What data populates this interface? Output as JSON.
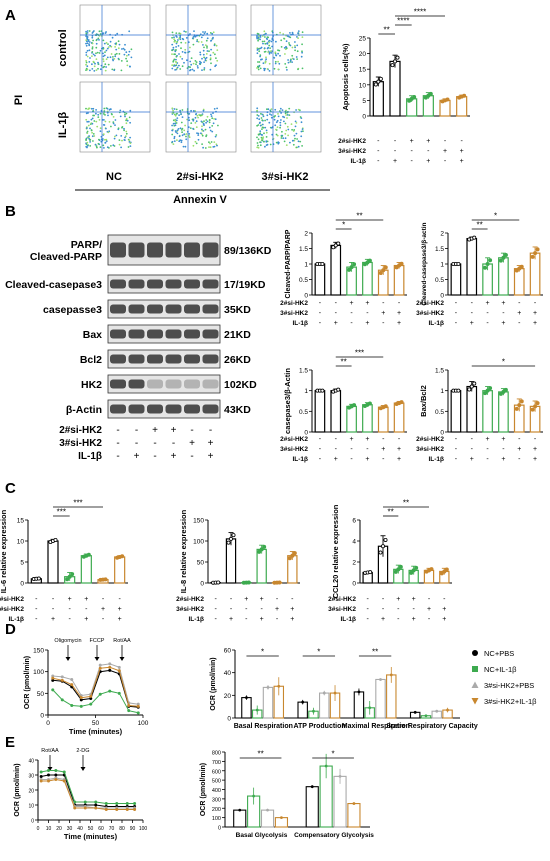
{
  "panels": {
    "a": "A",
    "b": "B",
    "c": "C",
    "d": "D",
    "e": "E"
  },
  "flow": {
    "y_axis_label": "PI",
    "x_axis_label": "Annexin V",
    "row_labels": [
      "control",
      "IL-1β"
    ],
    "col_labels": [
      "NC",
      "2#si-HK2",
      "3#si-HK2"
    ]
  },
  "conditions": {
    "row_labels": [
      "2#si-HK2",
      "3#si-HK2",
      "IL-1β"
    ],
    "signs_6": [
      [
        "-",
        "-",
        "+",
        "+",
        "-",
        "-"
      ],
      [
        "-",
        "-",
        "-",
        "-",
        "+",
        "+"
      ],
      [
        "-",
        "+",
        "-",
        "+",
        "-",
        "+"
      ]
    ]
  },
  "blot": {
    "bands": [
      {
        "label": "PARP/\nCleaved-PARP",
        "size": "89/136KD"
      },
      {
        "label": "Cleaved-casepase3",
        "size": "17/19KD"
      },
      {
        "label": "casepasse3",
        "size": "35KD"
      },
      {
        "label": "Bax",
        "size": "21KD"
      },
      {
        "label": "Bcl2",
        "size": "26KD"
      },
      {
        "label": "HK2",
        "size": "102KD"
      },
      {
        "label": "β-Actin",
        "size": "43KD"
      }
    ]
  },
  "colors": {
    "black": "#000000",
    "green": "#3daa4f",
    "gray": "#aaaaaa",
    "orange": "#c8872e"
  },
  "chart_data": [
    {
      "id": "apoptosis",
      "type": "bar",
      "ylabel": "Apoptosis cells(%)",
      "ylim": [
        0,
        25
      ],
      "yticks": [
        0,
        5,
        10,
        15,
        20,
        25
      ],
      "values": [
        11,
        17.5,
        5.5,
        6.5,
        5,
        6.2
      ],
      "errors": [
        1.5,
        2,
        1,
        1,
        0.5,
        0.5
      ],
      "sig": [
        {
          "from": 0,
          "to": 1,
          "label": "**"
        },
        {
          "from": 1,
          "to": 2,
          "label": "****"
        },
        {
          "from": 1,
          "to": 4,
          "label": "****"
        }
      ]
    },
    {
      "id": "cleaved_parp",
      "type": "bar",
      "ylabel": "Cleaved-PARP/PARP",
      "ylim": [
        0,
        2
      ],
      "yticks": [
        0,
        0.5,
        1.0,
        1.5,
        2.0
      ],
      "values": [
        1,
        1.6,
        0.9,
        1.05,
        0.8,
        0.95
      ],
      "errors": [
        0,
        0.1,
        0.15,
        0.1,
        0.15,
        0.1
      ],
      "sig": [
        {
          "from": 1,
          "to": 2,
          "label": "*"
        },
        {
          "from": 1,
          "to": 4,
          "label": "**"
        }
      ]
    },
    {
      "id": "cleaved_casp3",
      "type": "bar",
      "ylabel": "Cleaved-casepase3/β-actin",
      "ylim": [
        0,
        2
      ],
      "yticks": [
        0,
        0.5,
        1.0,
        1.5,
        2.0
      ],
      "values": [
        1,
        1.82,
        1.0,
        1.2,
        0.85,
        1.35
      ],
      "errors": [
        0,
        0.05,
        0.2,
        0.15,
        0.1,
        0.2
      ],
      "sig": [
        {
          "from": 1,
          "to": 2,
          "label": "**"
        },
        {
          "from": 1,
          "to": 4,
          "label": "*"
        }
      ]
    },
    {
      "id": "casp3",
      "type": "bar",
      "ylabel": "casepase3/β-Actin",
      "ylim": [
        0,
        1.5
      ],
      "yticks": [
        0,
        0.5,
        1.0,
        1.5
      ],
      "values": [
        1,
        1.0,
        0.62,
        0.66,
        0.6,
        0.7
      ],
      "errors": [
        0,
        0.04,
        0.05,
        0.05,
        0.04,
        0.04
      ],
      "sig": [
        {
          "from": 1,
          "to": 2,
          "label": "**"
        },
        {
          "from": 1,
          "to": 4,
          "label": "***"
        }
      ]
    },
    {
      "id": "bax_bcl2",
      "type": "bar",
      "ylabel": "Bax/Bcl2",
      "ylim": [
        0,
        1.5
      ],
      "yticks": [
        0,
        0.5,
        1.0,
        1.5
      ],
      "values": [
        1,
        1.1,
        1.0,
        0.97,
        0.65,
        0.62
      ],
      "errors": [
        0,
        0.12,
        0.1,
        0.08,
        0.15,
        0.13
      ],
      "sig": [
        {
          "from": 1,
          "to": 5,
          "label": "*"
        }
      ]
    },
    {
      "id": "il6",
      "type": "bar",
      "ylabel": "IL-6 relative expression",
      "ylim": [
        0,
        15
      ],
      "yticks": [
        0,
        5,
        10,
        15
      ],
      "values": [
        1,
        10,
        1.5,
        6.5,
        0.8,
        6.2
      ],
      "errors": [
        0.1,
        0.4,
        1,
        0.4,
        0.1,
        0.3
      ],
      "sig": [
        {
          "from": 1,
          "to": 2,
          "label": "***"
        },
        {
          "from": 1,
          "to": 4,
          "label": "***"
        }
      ]
    },
    {
      "id": "il8",
      "type": "bar",
      "ylabel": "IL-8 relative expression",
      "ylim": [
        0,
        150
      ],
      "yticks": [
        0,
        50,
        100,
        150
      ],
      "values": [
        1,
        105,
        1,
        80,
        1,
        65
      ],
      "errors": [
        0.5,
        15,
        0.5,
        10,
        0.5,
        10
      ],
      "sig": []
    },
    {
      "id": "ccl20",
      "type": "bar",
      "ylabel": "CCL20 relative expression",
      "ylim": [
        0,
        6
      ],
      "yticks": [
        0,
        2,
        4,
        6
      ],
      "values": [
        1,
        3.5,
        1.3,
        1.2,
        1.2,
        1.1
      ],
      "errors": [
        0.05,
        1,
        0.4,
        0.4,
        0.2,
        0.3
      ],
      "sig": [
        {
          "from": 1,
          "to": 2,
          "label": "**"
        },
        {
          "from": 1,
          "to": 4,
          "label": "**"
        }
      ]
    },
    {
      "id": "ocr_time",
      "type": "line",
      "ylabel": "OCR (pmol/min)",
      "xlabel": "Time (minutes)",
      "xlim": [
        0,
        100
      ],
      "ylim": [
        0,
        150
      ],
      "xticks": [
        0,
        50,
        100
      ],
      "yticks": [
        0,
        50,
        100,
        150
      ],
      "annotations": [
        "Oligomycin",
        "FCCP",
        "Rot/AA"
      ],
      "x": [
        5,
        15,
        25,
        35,
        45,
        55,
        65,
        75,
        85,
        95
      ],
      "series": [
        {
          "name": "NC+PBS",
          "color": "black",
          "values": [
            80,
            78,
            65,
            35,
            38,
            100,
            103,
            95,
            20,
            18
          ]
        },
        {
          "name": "NC+IL-1β",
          "color": "green",
          "values": [
            58,
            35,
            22,
            20,
            25,
            48,
            55,
            50,
            10,
            5
          ]
        },
        {
          "name": "3#si-HK2+PBS",
          "color": "gray",
          "values": [
            90,
            88,
            82,
            45,
            48,
            115,
            118,
            110,
            28,
            25
          ]
        },
        {
          "name": "3#si-HK2+IL-1β",
          "color": "orange",
          "values": [
            85,
            80,
            70,
            40,
            43,
            108,
            110,
            102,
            22,
            20
          ]
        }
      ]
    },
    {
      "id": "ocr_bar",
      "type": "bar",
      "ylabel": "OCR (pmol/min)",
      "ylim": [
        0,
        60
      ],
      "yticks": [
        0,
        20,
        40,
        60
      ],
      "categories": [
        "Basal Respiration",
        "ATP Production",
        "Maximal Respiration",
        "Spare Respiratory Capacity"
      ],
      "series": [
        {
          "name": "NC+PBS",
          "values": [
            18,
            14,
            23,
            5
          ],
          "errors": [
            2,
            2,
            3,
            1
          ]
        },
        {
          "name": "NC+IL-1β",
          "values": [
            7,
            6,
            9,
            2
          ],
          "errors": [
            4,
            3,
            6,
            1
          ]
        },
        {
          "name": "3#si-HK2+PBS",
          "values": [
            27,
            22,
            34,
            6
          ],
          "errors": [
            2,
            2,
            1,
            1
          ]
        },
        {
          "name": "3#si-HK2+IL-1β",
          "values": [
            28,
            22,
            38,
            7
          ],
          "errors": [
            8,
            7,
            7,
            2
          ]
        }
      ],
      "sig": [
        {
          "cat": 0,
          "label": "*"
        },
        {
          "cat": 1,
          "label": "*"
        },
        {
          "cat": 2,
          "label": "**"
        }
      ]
    },
    {
      "id": "ecar_time",
      "type": "line",
      "ylabel": "OCR (pmol/min)",
      "xlabel": "Time (minutes)",
      "xlim": [
        0,
        100
      ],
      "ylim": [
        0,
        40
      ],
      "xticks": [
        0,
        10,
        20,
        30,
        40,
        50,
        60,
        70,
        80,
        90,
        100
      ],
      "yticks": [
        0,
        10,
        20,
        30,
        40
      ],
      "annotations": [
        "Rot/AA",
        "2-DG"
      ],
      "x": [
        3,
        10,
        17,
        25,
        35,
        45,
        55,
        65,
        75,
        85,
        92
      ],
      "series": [
        {
          "name": "NC+PBS",
          "color": "black",
          "values": [
            29,
            30,
            30,
            30,
            10,
            10,
            10,
            9,
            9,
            9,
            9
          ]
        },
        {
          "name": "NC+IL-1β",
          "color": "green",
          "values": [
            32,
            33,
            33,
            32,
            12,
            12,
            12,
            11,
            11,
            11,
            11
          ]
        },
        {
          "name": "3#si-HK2+PBS",
          "color": "gray",
          "values": [
            27,
            27,
            28,
            27,
            9,
            9,
            8,
            8,
            8,
            8,
            8
          ]
        },
        {
          "name": "3#si-HK2+IL-1β",
          "color": "orange",
          "values": [
            26,
            26,
            27,
            26,
            8,
            8,
            8,
            7,
            7,
            7,
            7
          ]
        }
      ]
    },
    {
      "id": "glyco_bar",
      "type": "bar",
      "ylabel": "OCR (pmol/min)",
      "ylim": [
        0,
        800
      ],
      "yticks": [
        0,
        100,
        200,
        300,
        400,
        500,
        600,
        700,
        800
      ],
      "categories": [
        "Basal Glycolysis",
        "Compensatory Glycolysis"
      ],
      "series": [
        {
          "name": "NC+PBS",
          "values": [
            180,
            430
          ],
          "errors": [
            10,
            15
          ]
        },
        {
          "name": "NC+IL-1β",
          "values": [
            330,
            650
          ],
          "errors": [
            90,
            130
          ]
        },
        {
          "name": "3#si-HK2+PBS",
          "values": [
            180,
            540
          ],
          "errors": [
            15,
            80
          ]
        },
        {
          "name": "3#si-HK2+IL-1β",
          "values": [
            100,
            250
          ],
          "errors": [
            10,
            10
          ]
        }
      ],
      "sig": [
        {
          "cat": 0,
          "label": "**"
        },
        {
          "cat": 1,
          "label": "*"
        }
      ]
    }
  ],
  "legend": [
    "NC+PBS",
    "NC+IL-1β",
    "3#si-HK2+PBS",
    "3#si-HK2+IL-1β"
  ]
}
